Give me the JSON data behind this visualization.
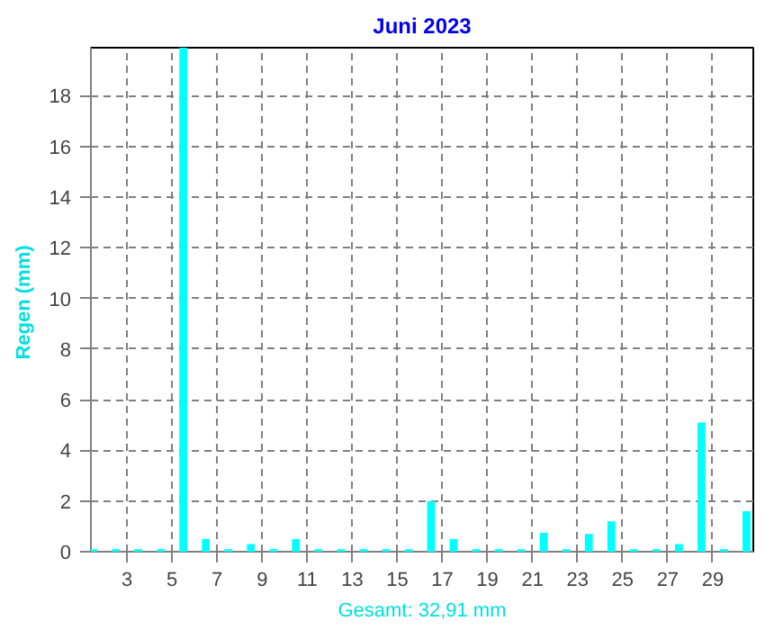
{
  "chart_data": {
    "type": "bar",
    "title": "Juni 2023",
    "ylabel": "Regen  (mm)",
    "xlabel": "Gesamt: 32,91 mm",
    "x": [
      1.5,
      2.5,
      3.5,
      4.5,
      5.5,
      6.5,
      7.5,
      8.5,
      9.5,
      10.5,
      11.5,
      12.5,
      13.5,
      14.5,
      15.5,
      16.5,
      17.5,
      18.5,
      19.5,
      20.5,
      21.5,
      22.5,
      23.5,
      24.5,
      25.5,
      26.5,
      27.5,
      28.5,
      29.5,
      30.5
    ],
    "values": [
      0.1,
      0.1,
      0.1,
      0.1,
      19.9,
      0.5,
      0.1,
      0.3,
      0.1,
      0.5,
      0.1,
      0.1,
      0.1,
      0.1,
      0.1,
      2.0,
      0.5,
      0.1,
      0.1,
      0.1,
      0.75,
      0.1,
      0.7,
      1.2,
      0.1,
      0.1,
      0.3,
      5.1,
      0.1,
      1.6
    ],
    "color": "#00ffff",
    "xlim": [
      1.4,
      30.8
    ],
    "xticks": [
      3,
      5,
      7,
      9,
      11,
      13,
      15,
      17,
      19,
      21,
      23,
      25,
      27,
      29
    ],
    "ylim": [
      0,
      19.9
    ],
    "yticks": [
      0,
      2,
      4,
      6,
      8,
      10,
      12,
      14,
      16,
      18
    ],
    "grid": true
  }
}
